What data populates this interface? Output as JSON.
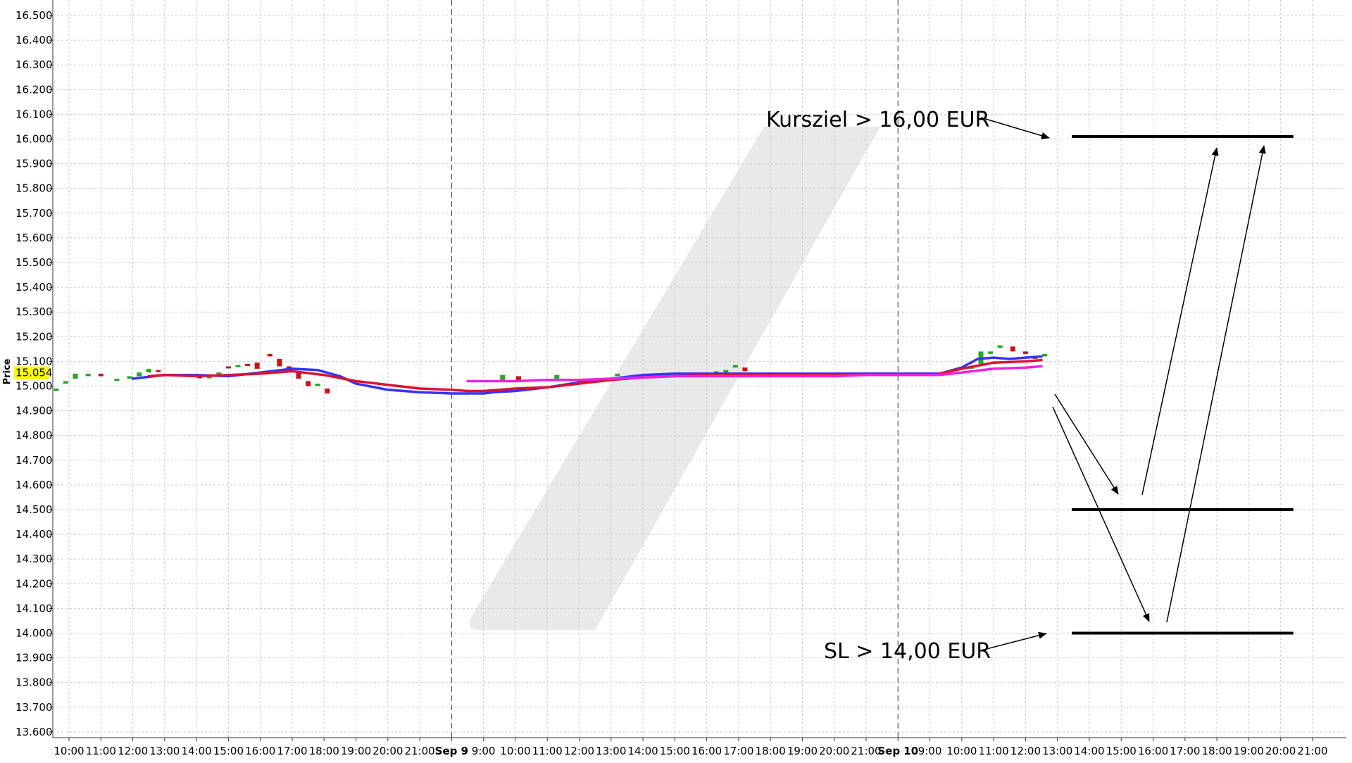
{
  "chart_data": {
    "type": "line",
    "ylabel": "Price",
    "ylim": [
      13.55,
      16.55
    ],
    "yticks": [
      "13.600",
      "13.700",
      "13.800",
      "13.900",
      "14.000",
      "14.100",
      "14.200",
      "14.300",
      "14.400",
      "14.500",
      "14.600",
      "14.700",
      "14.800",
      "14.900",
      "15.000",
      "15.100",
      "15.200",
      "15.300",
      "15.400",
      "15.500",
      "15.600",
      "15.700",
      "15.800",
      "15.900",
      "16.000",
      "16.100",
      "16.200",
      "16.300",
      "16.400",
      "16.500"
    ],
    "x_labels": [
      "10:00",
      "11:00",
      "12:00",
      "13:00",
      "14:00",
      "15:00",
      "16:00",
      "17:00",
      "18:00",
      "19:00",
      "20:00",
      "21:00",
      "Sep 9",
      "9:00",
      "10:00",
      "11:00",
      "12:00",
      "13:00",
      "14:00",
      "15:00",
      "16:00",
      "17:00",
      "18:00",
      "19:00",
      "20:00",
      "21:00",
      "Sep 10",
      "9:00",
      "10:00",
      "11:00",
      "12:00",
      "13:00",
      "14:00",
      "15:00",
      "16:00",
      "17:00",
      "18:00",
      "19:00",
      "20:00",
      "21:00"
    ],
    "bold_labels": [
      "Sep 9",
      "Sep 10"
    ],
    "grid": true,
    "current_price": "15.054",
    "current_price_value": 15.054,
    "highlight_color": "#ffff00",
    "series": [
      {
        "color": "#3333ff",
        "x": [
          2,
          3,
          4,
          5,
          6,
          7,
          7.8,
          8.5,
          9,
          10,
          11,
          12,
          13,
          13.3,
          14,
          15,
          16,
          17,
          18,
          19,
          20,
          21,
          22,
          23,
          24,
          25,
          26,
          27,
          27.3,
          28,
          28.5,
          29,
          29.5,
          30,
          30.5
        ],
        "y": [
          15.03,
          15.045,
          15.045,
          15.04,
          15.055,
          15.07,
          15.065,
          15.04,
          15.01,
          14.985,
          14.975,
          14.97,
          14.97,
          14.975,
          14.98,
          14.995,
          15.015,
          15.03,
          15.045,
          15.05,
          15.05,
          15.05,
          15.05,
          15.05,
          15.05,
          15.05,
          15.05,
          15.05,
          15.05,
          15.075,
          15.11,
          15.115,
          15.11,
          15.115,
          15.12
        ]
      },
      {
        "color": "#dd1133",
        "x": [
          2.5,
          3,
          4,
          5,
          6,
          7,
          8,
          9,
          10,
          11,
          12,
          12.5,
          13,
          14,
          15,
          16,
          17,
          18,
          19,
          20,
          21,
          22,
          23,
          24,
          25,
          26,
          27,
          27.3,
          28,
          29,
          30,
          30.5
        ],
        "y": [
          15.04,
          15.045,
          15.04,
          15.045,
          15.05,
          15.06,
          15.045,
          15.02,
          15.005,
          14.99,
          14.985,
          14.98,
          14.98,
          14.99,
          14.995,
          15.01,
          15.025,
          15.035,
          15.04,
          15.045,
          15.045,
          15.045,
          15.045,
          15.045,
          15.045,
          15.045,
          15.045,
          15.05,
          15.07,
          15.095,
          15.1,
          15.105
        ]
      },
      {
        "color": "#ee22dd",
        "x": [
          12.5,
          14,
          15,
          16,
          17,
          18,
          19,
          20,
          21,
          22,
          23,
          24,
          25,
          26,
          27,
          27.3,
          28,
          29,
          30,
          30.5
        ],
        "y": [
          15.02,
          15.02,
          15.025,
          15.025,
          15.03,
          15.035,
          15.04,
          15.04,
          15.04,
          15.04,
          15.04,
          15.04,
          15.045,
          15.045,
          15.045,
          15.045,
          15.055,
          15.07,
          15.075,
          15.08
        ]
      }
    ],
    "candles": [
      {
        "x": -0.4,
        "o": 14.98,
        "c": 14.99,
        "color": "#22aa22"
      },
      {
        "x": -0.1,
        "o": 15.01,
        "c": 15.02,
        "color": "#22aa22"
      },
      {
        "x": 0.2,
        "o": 15.03,
        "c": 15.05,
        "color": "#22aa22"
      },
      {
        "x": 0.6,
        "o": 15.04,
        "c": 15.05,
        "color": "#22aa22"
      },
      {
        "x": 1.0,
        "o": 15.04,
        "c": 15.05,
        "color": "#cc1111"
      },
      {
        "x": 1.5,
        "o": 15.025,
        "c": 15.03,
        "color": "#22aa22"
      },
      {
        "x": 1.9,
        "o": 15.03,
        "c": 15.04,
        "color": "#22aa22"
      },
      {
        "x": 2.2,
        "o": 15.04,
        "c": 15.055,
        "color": "#22aa22"
      },
      {
        "x": 2.5,
        "o": 15.055,
        "c": 15.07,
        "color": "#22aa22"
      },
      {
        "x": 2.8,
        "o": 15.065,
        "c": 15.06,
        "color": "#cc1111"
      },
      {
        "x": 3.2,
        "o": 15.05,
        "c": 15.045,
        "color": "#cc1111"
      },
      {
        "x": 4.1,
        "o": 15.04,
        "c": 15.035,
        "color": "#cc1111"
      },
      {
        "x": 4.4,
        "o": 15.035,
        "c": 15.04,
        "color": "#22aa22"
      },
      {
        "x": 4.7,
        "o": 15.05,
        "c": 15.055,
        "color": "#22aa22"
      },
      {
        "x": 5.0,
        "o": 15.08,
        "c": 15.075,
        "color": "#cc1111"
      },
      {
        "x": 5.3,
        "o": 15.08,
        "c": 15.085,
        "color": "#22aa22"
      },
      {
        "x": 5.6,
        "o": 15.09,
        "c": 15.085,
        "color": "#cc1111"
      },
      {
        "x": 5.9,
        "o": 15.095,
        "c": 15.07,
        "color": "#cc1111"
      },
      {
        "x": 6.3,
        "o": 15.13,
        "c": 15.12,
        "color": "#cc1111"
      },
      {
        "x": 6.6,
        "o": 15.11,
        "c": 15.08,
        "color": "#cc1111"
      },
      {
        "x": 6.9,
        "o": 15.08,
        "c": 15.06,
        "color": "#cc1111"
      },
      {
        "x": 7.2,
        "o": 15.055,
        "c": 15.03,
        "color": "#cc1111"
      },
      {
        "x": 7.5,
        "o": 15.02,
        "c": 15.0,
        "color": "#cc1111"
      },
      {
        "x": 7.8,
        "o": 15.0,
        "c": 15.01,
        "color": "#22aa22"
      },
      {
        "x": 8.1,
        "o": 14.99,
        "c": 14.97,
        "color": "#cc1111"
      },
      {
        "x": 13.6,
        "o": 15.02,
        "c": 15.045,
        "color": "#22aa22"
      },
      {
        "x": 14.1,
        "o": 15.04,
        "c": 15.02,
        "color": "#cc1111"
      },
      {
        "x": 15.3,
        "o": 15.03,
        "c": 15.045,
        "color": "#22aa22"
      },
      {
        "x": 17.2,
        "o": 15.045,
        "c": 15.05,
        "color": "#22aa22"
      },
      {
        "x": 18.1,
        "o": 15.05,
        "c": 15.045,
        "color": "#cc1111"
      },
      {
        "x": 20.3,
        "o": 15.05,
        "c": 15.06,
        "color": "#22aa22"
      },
      {
        "x": 20.6,
        "o": 15.055,
        "c": 15.065,
        "color": "#22aa22"
      },
      {
        "x": 20.9,
        "o": 15.075,
        "c": 15.085,
        "color": "#22aa22"
      },
      {
        "x": 21.2,
        "o": 15.075,
        "c": 15.06,
        "color": "#cc1111"
      },
      {
        "x": 28.3,
        "o": 15.07,
        "c": 15.08,
        "color": "#22aa22"
      },
      {
        "x": 28.6,
        "o": 15.09,
        "c": 15.14,
        "color": "#22aa22"
      },
      {
        "x": 28.9,
        "o": 15.13,
        "c": 15.14,
        "color": "#22aa22"
      },
      {
        "x": 29.2,
        "o": 15.155,
        "c": 15.165,
        "color": "#22aa22"
      },
      {
        "x": 29.6,
        "o": 15.16,
        "c": 15.14,
        "color": "#cc1111"
      },
      {
        "x": 30.0,
        "o": 15.14,
        "c": 15.13,
        "color": "#cc1111"
      },
      {
        "x": 30.3,
        "o": 15.12,
        "c": 15.11,
        "color": "#cc1111"
      },
      {
        "x": 30.6,
        "o": 15.12,
        "c": 15.13,
        "color": "#22aa22"
      }
    ],
    "levels": [
      {
        "value": 16.01,
        "x_start": 31.45,
        "x_end": 38.4
      },
      {
        "value": 14.5,
        "x_start": 31.45,
        "x_end": 38.4
      },
      {
        "value": 14.0,
        "x_start": 31.45,
        "x_end": 38.4
      }
    ],
    "annotations": [
      {
        "text": "Kursziel > 16,00 EUR"
      },
      {
        "text": "SL > 14,00 EUR"
      }
    ]
  }
}
